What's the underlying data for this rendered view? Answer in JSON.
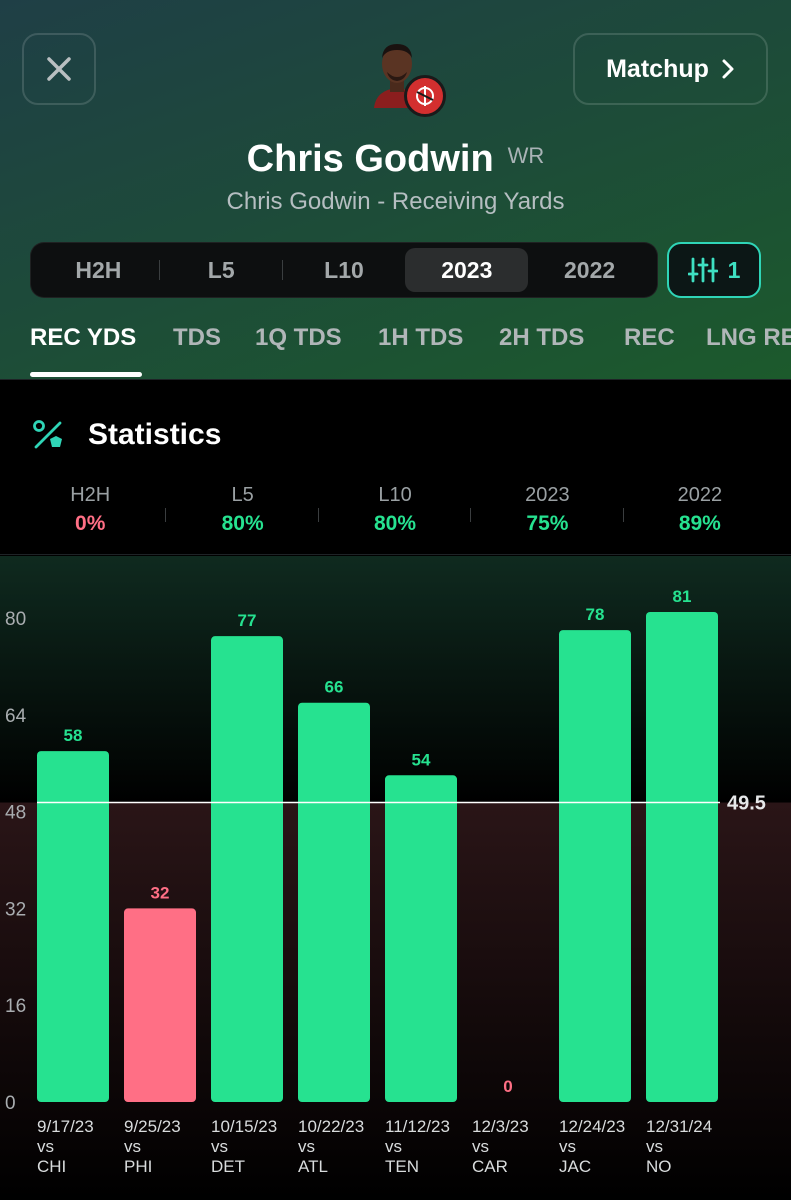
{
  "header": {
    "matchup_label": "Matchup",
    "player_name": "Chris Godwin",
    "position": "WR",
    "subtitle": "Chris Godwin - Receiving Yards",
    "filter_count": "1"
  },
  "segments": [
    "H2H",
    "L5",
    "L10",
    "2023",
    "2022"
  ],
  "active_segment": "2023",
  "tabs": [
    "REC YDS",
    "TDS",
    "1Q TDS",
    "1H TDS",
    "2H TDS",
    "REC",
    "LNG REC"
  ],
  "stats": {
    "title": "Statistics",
    "columns": [
      {
        "label": "H2H",
        "value": "0%"
      },
      {
        "label": "L5",
        "value": "80%"
      },
      {
        "label": "L10",
        "value": "80%"
      },
      {
        "label": "2023",
        "value": "75%"
      },
      {
        "label": "2022",
        "value": "89%"
      }
    ]
  },
  "colors": {
    "over": "#26e290",
    "under": "#ff6f85",
    "teal_accent": "#2fd5b7",
    "team": "#d32f2f"
  },
  "chart_data": {
    "type": "bar",
    "line_value": 49.5,
    "line_label": "49.5",
    "ylim": [
      0,
      80
    ],
    "y_ticks": [
      0,
      16,
      32,
      48,
      64,
      80
    ],
    "values": [
      58,
      32,
      77,
      66,
      54,
      0,
      78,
      81
    ],
    "categories": [
      {
        "date": "9/17/23",
        "vs": "vs",
        "opp": "CHI"
      },
      {
        "date": "9/25/23",
        "vs": "vs",
        "opp": "PHI"
      },
      {
        "date": "10/15/23",
        "vs": "vs",
        "opp": "DET"
      },
      {
        "date": "10/22/23",
        "vs": "vs",
        "opp": "ATL"
      },
      {
        "date": "11/12/23",
        "vs": "vs",
        "opp": "TEN"
      },
      {
        "date": "12/3/23",
        "vs": "vs",
        "opp": "CAR"
      },
      {
        "date": "12/24/23",
        "vs": "vs",
        "opp": "JAC"
      },
      {
        "date": "12/31/24",
        "vs": "vs",
        "opp": "NO"
      }
    ]
  }
}
